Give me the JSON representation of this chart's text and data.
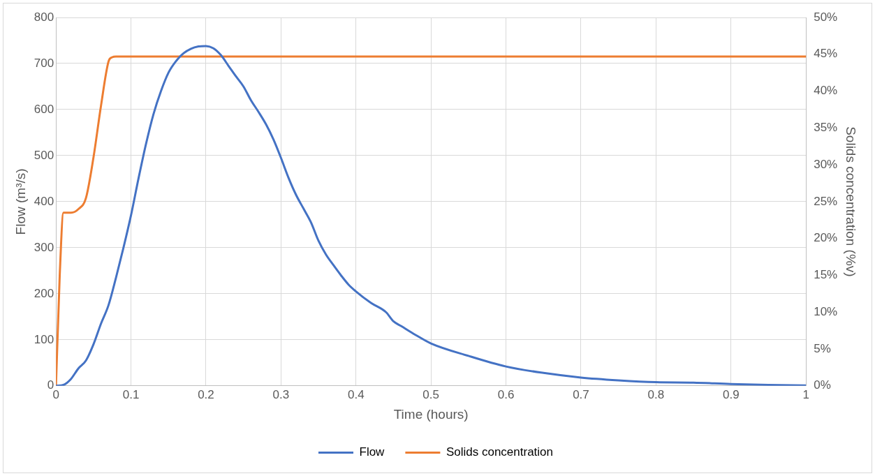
{
  "chart_data": {
    "type": "line",
    "xlabel": "Time (hours)",
    "ylabel": "Flow (m³/s)",
    "y2label": "Solids concentration (%v)",
    "xlim": [
      0,
      1
    ],
    "xticks": [
      0,
      0.1,
      0.2,
      0.3,
      0.4,
      0.5,
      0.6,
      0.7,
      0.8,
      0.9,
      1
    ],
    "ylim": [
      0,
      800
    ],
    "yticks": [
      0,
      100,
      200,
      300,
      400,
      500,
      600,
      700,
      800
    ],
    "y2lim": [
      0,
      50
    ],
    "y2ticks": [
      {
        "value": 0,
        "label": "0%"
      },
      {
        "value": 5,
        "label": "5%"
      },
      {
        "value": 10,
        "label": "10%"
      },
      {
        "value": 15,
        "label": "15%"
      },
      {
        "value": 20,
        "label": "20%"
      },
      {
        "value": 25,
        "label": "25%"
      },
      {
        "value": 30,
        "label": "30%"
      },
      {
        "value": 35,
        "label": "35%"
      },
      {
        "value": 40,
        "label": "40%"
      },
      {
        "value": 45,
        "label": "45%"
      },
      {
        "value": 50,
        "label": "50%"
      }
    ],
    "grid": true,
    "legend": "bottom",
    "marker": "none",
    "line_style": "solid",
    "series": [
      {
        "name": "Flow",
        "color": "#4472c4",
        "x": [
          0,
          0.01,
          0.02,
          0.03,
          0.04,
          0.05,
          0.06,
          0.07,
          0.08,
          0.09,
          0.1,
          0.11,
          0.12,
          0.13,
          0.14,
          0.15,
          0.16,
          0.17,
          0.18,
          0.19,
          0.2,
          0.21,
          0.22,
          0.23,
          0.24,
          0.25,
          0.26,
          0.27,
          0.28,
          0.29,
          0.3,
          0.31,
          0.32,
          0.33,
          0.34,
          0.35,
          0.36,
          0.37,
          0.38,
          0.39,
          0.4,
          0.42,
          0.44,
          0.45,
          0.46,
          0.48,
          0.5,
          0.55,
          0.6,
          0.65,
          0.7,
          0.75,
          0.8,
          0.85,
          0.9,
          0.95,
          1
        ],
        "values": [
          0,
          2,
          15,
          38,
          55,
          90,
          135,
          175,
          235,
          300,
          370,
          450,
          525,
          590,
          640,
          680,
          705,
          722,
          732,
          737,
          738,
          733,
          718,
          695,
          672,
          650,
          620,
          595,
          568,
          535,
          495,
          452,
          415,
          385,
          355,
          315,
          285,
          262,
          240,
          220,
          205,
          180,
          160,
          140,
          130,
          110,
          92,
          65,
          42,
          28,
          18,
          12,
          8,
          7,
          4,
          2,
          1
        ]
      },
      {
        "name": "Solids concentration",
        "color": "#ed7d31",
        "axis": "y2",
        "x": [
          0,
          0.005,
          0.01,
          0.02,
          0.03,
          0.04,
          0.05,
          0.06,
          0.07,
          0.075,
          0.08,
          0.1,
          1
        ],
        "values": [
          0,
          15,
          23.5,
          23.5,
          24,
          25.5,
          31,
          38,
          44,
          44.6,
          44.7,
          44.7,
          44.7
        ]
      }
    ]
  }
}
